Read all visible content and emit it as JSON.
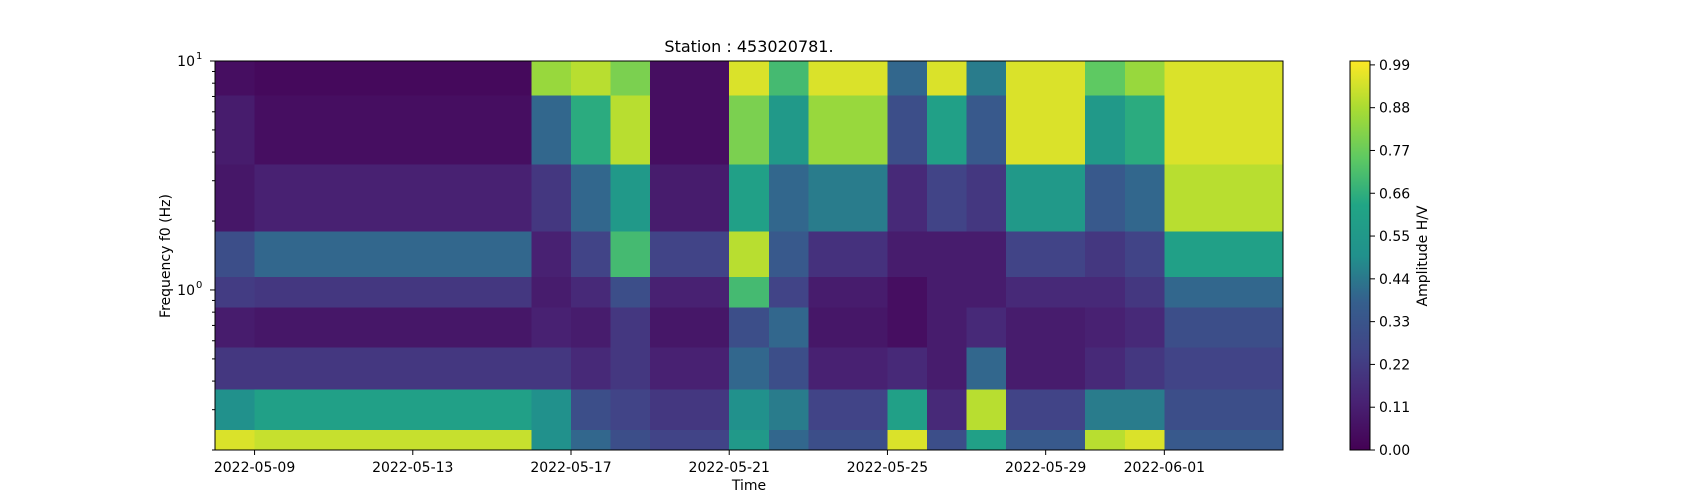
{
  "chart_data": {
    "type": "heatmap",
    "title": "Station : 453020781.",
    "xlabel": "Time",
    "ylabel": "Frequency f0 (Hz)",
    "colorbar_label": "Amplitude H/V",
    "colormap": "viridis",
    "x_range": [
      "2022-05-08",
      "2022-06-04"
    ],
    "x_scale": "date",
    "y_scale": "log",
    "ylim": [
      0.2,
      10
    ],
    "y_ticks": [
      {
        "value": 1,
        "base": "10",
        "exp": "0"
      },
      {
        "value": 10,
        "base": "10",
        "exp": "1"
      }
    ],
    "x_ticks": [
      {
        "date": "2022-05-09",
        "label": "2022-05-09"
      },
      {
        "date": "2022-05-13",
        "label": "2022-05-13"
      },
      {
        "date": "2022-05-17",
        "label": "2022-05-17"
      },
      {
        "date": "2022-05-21",
        "label": "2022-05-21"
      },
      {
        "date": "2022-05-25",
        "label": "2022-05-25"
      },
      {
        "date": "2022-05-29",
        "label": "2022-05-29"
      },
      {
        "date": "2022-06-01",
        "label": "2022-06-01"
      }
    ],
    "colorbar": {
      "range": [
        0,
        1
      ],
      "ticks": [
        {
          "value": 0.0,
          "label": "0.00"
        },
        {
          "value": 0.11,
          "label": "0.11"
        },
        {
          "value": 0.22,
          "label": "0.22"
        },
        {
          "value": 0.33,
          "label": "0.33"
        },
        {
          "value": 0.44,
          "label": "0.44"
        },
        {
          "value": 0.55,
          "label": "0.55"
        },
        {
          "value": 0.66,
          "label": "0.66"
        },
        {
          "value": 0.77,
          "label": "0.77"
        },
        {
          "value": 0.88,
          "label": "0.88"
        },
        {
          "value": 0.99,
          "label": "0.99"
        }
      ]
    },
    "freq_axis_hz": [
      10.0,
      5.0,
      2.5,
      1.3,
      1.0,
      0.7,
      0.45,
      0.3,
      0.2
    ],
    "time_blocks": [
      {
        "start": "2022-05-08",
        "end": "2022-05-09",
        "amp": [
          0.05,
          0.1,
          0.08,
          0.3,
          0.22,
          0.1,
          0.2,
          0.5,
          0.95
        ]
      },
      {
        "start": "2022-05-09",
        "end": "2022-05-16",
        "amp": [
          0.03,
          0.05,
          0.12,
          0.4,
          0.2,
          0.08,
          0.2,
          0.6,
          0.92
        ]
      },
      {
        "start": "2022-05-16",
        "end": "2022-05-17",
        "amp": [
          0.85,
          0.4,
          0.2,
          0.12,
          0.1,
          0.12,
          0.2,
          0.5,
          0.5
        ]
      },
      {
        "start": "2022-05-17",
        "end": "2022-05-18",
        "amp": [
          0.9,
          0.65,
          0.4,
          0.25,
          0.15,
          0.1,
          0.15,
          0.3,
          0.4
        ]
      },
      {
        "start": "2022-05-18",
        "end": "2022-05-19",
        "amp": [
          0.8,
          0.9,
          0.55,
          0.7,
          0.3,
          0.2,
          0.2,
          0.25,
          0.3
        ]
      },
      {
        "start": "2022-05-19",
        "end": "2022-05-21",
        "amp": [
          0.05,
          0.05,
          0.1,
          0.25,
          0.12,
          0.08,
          0.12,
          0.2,
          0.25
        ]
      },
      {
        "start": "2022-05-21",
        "end": "2022-05-22",
        "amp": [
          0.95,
          0.8,
          0.6,
          0.9,
          0.7,
          0.3,
          0.4,
          0.5,
          0.55
        ]
      },
      {
        "start": "2022-05-22",
        "end": "2022-05-23",
        "amp": [
          0.7,
          0.55,
          0.4,
          0.35,
          0.25,
          0.4,
          0.3,
          0.45,
          0.4
        ]
      },
      {
        "start": "2022-05-23",
        "end": "2022-05-25",
        "amp": [
          0.95,
          0.85,
          0.45,
          0.18,
          0.1,
          0.08,
          0.12,
          0.25,
          0.3
        ]
      },
      {
        "start": "2022-05-25",
        "end": "2022-05-26",
        "amp": [
          0.4,
          0.3,
          0.15,
          0.1,
          0.05,
          0.05,
          0.15,
          0.6,
          0.95
        ]
      },
      {
        "start": "2022-05-26",
        "end": "2022-05-27",
        "amp": [
          0.95,
          0.6,
          0.25,
          0.1,
          0.1,
          0.1,
          0.1,
          0.15,
          0.3
        ]
      },
      {
        "start": "2022-05-27",
        "end": "2022-05-28",
        "amp": [
          0.45,
          0.35,
          0.2,
          0.1,
          0.1,
          0.15,
          0.4,
          0.9,
          0.6
        ]
      },
      {
        "start": "2022-05-28",
        "end": "2022-05-30",
        "amp": [
          0.95,
          0.95,
          0.55,
          0.25,
          0.15,
          0.1,
          0.1,
          0.25,
          0.35
        ]
      },
      {
        "start": "2022-05-30",
        "end": "2022-05-31",
        "amp": [
          0.75,
          0.55,
          0.35,
          0.2,
          0.15,
          0.12,
          0.15,
          0.45,
          0.9
        ]
      },
      {
        "start": "2022-05-31",
        "end": "2022-06-01",
        "amp": [
          0.85,
          0.65,
          0.4,
          0.25,
          0.2,
          0.15,
          0.2,
          0.45,
          0.95
        ]
      },
      {
        "start": "2022-06-01",
        "end": "2022-06-04",
        "amp": [
          0.95,
          0.95,
          0.9,
          0.6,
          0.4,
          0.3,
          0.25,
          0.3,
          0.35
        ]
      }
    ]
  }
}
